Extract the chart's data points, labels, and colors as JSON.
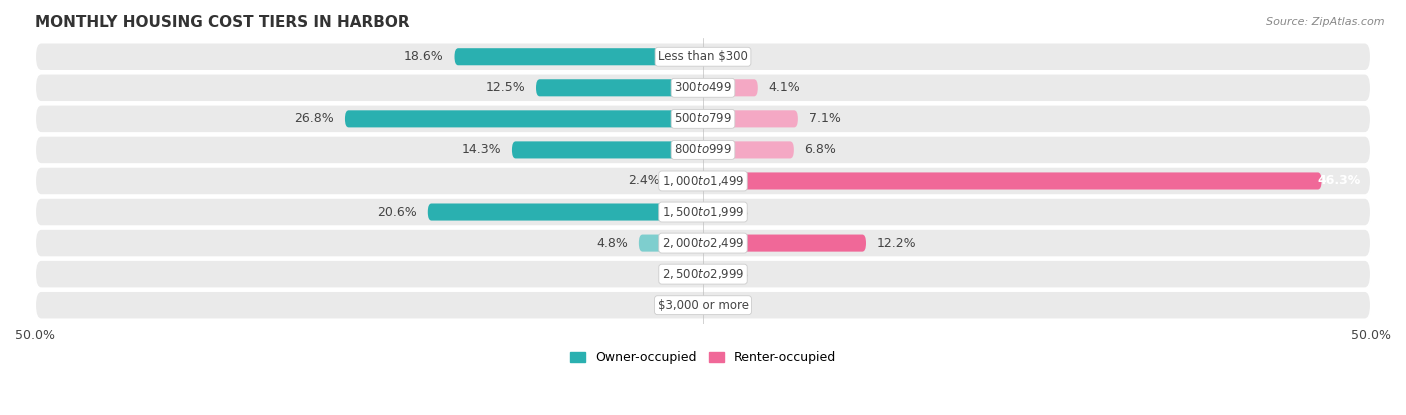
{
  "title": "MONTHLY HOUSING COST TIERS IN HARBOR",
  "source": "Source: ZipAtlas.com",
  "categories": [
    "Less than $300",
    "$300 to $499",
    "$500 to $799",
    "$800 to $999",
    "$1,000 to $1,499",
    "$1,500 to $1,999",
    "$2,000 to $2,499",
    "$2,500 to $2,999",
    "$3,000 or more"
  ],
  "owner_values": [
    18.6,
    12.5,
    26.8,
    14.3,
    2.4,
    20.6,
    4.8,
    0.0,
    0.0
  ],
  "renter_values": [
    0.0,
    4.1,
    7.1,
    6.8,
    46.3,
    0.0,
    12.2,
    0.0,
    0.0
  ],
  "owner_color_dark": "#2ab0b0",
  "owner_color_light": "#7ecece",
  "renter_color_dark": "#f06898",
  "renter_color_light": "#f4a8c4",
  "axis_limit": 50.0,
  "bar_height": 0.55,
  "row_bg_color": "#eaeaea",
  "row_bg_alt": "#f5f5f5",
  "label_color": "#444444",
  "title_color": "#333333",
  "value_label_fontsize": 9,
  "cat_label_fontsize": 8.5,
  "legend_owner": "Owner-occupied",
  "legend_renter": "Renter-occupied"
}
